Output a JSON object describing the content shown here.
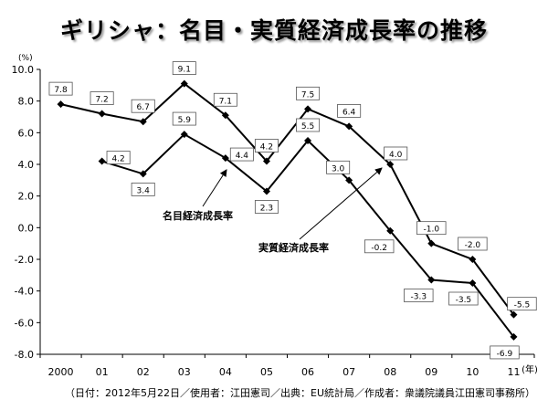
{
  "chart_data": {
    "type": "line",
    "title": "ギリシャ：名目・実質経済成長率の推移",
    "ylabel": "(%)",
    "xlabel": "(年)",
    "ylim": [
      -8.0,
      10.0
    ],
    "ytick_values": [
      10.0,
      8.0,
      6.0,
      4.0,
      2.0,
      0.0,
      -2.0,
      -4.0,
      -6.0,
      -8.0
    ],
    "ytick_labels": [
      "10.0",
      "8.0",
      "6.0",
      "4.0",
      "2.0",
      "0.0",
      "-2.0",
      "-4.0",
      "-6.0",
      "-8.0"
    ],
    "categories": [
      "2000",
      "01",
      "02",
      "03",
      "04",
      "05",
      "06",
      "07",
      "08",
      "09",
      "10",
      "11"
    ],
    "grid": false,
    "series": [
      {
        "name": "名目経済成長率",
        "values": [
          7.8,
          7.2,
          6.7,
          9.1,
          7.1,
          4.2,
          7.5,
          6.4,
          4.0,
          -1.0,
          -2.0,
          -5.5
        ],
        "labels": [
          "7.8",
          "7.2",
          "6.7",
          "9.1",
          "7.1",
          "4.2",
          "7.5",
          "6.4",
          "4.0",
          "-1.0",
          "-2.0",
          "-5.5"
        ]
      },
      {
        "name": "実質経済成長率",
        "values": [
          null,
          4.2,
          3.4,
          5.9,
          4.4,
          2.3,
          5.5,
          3.0,
          -0.2,
          -3.3,
          -3.5,
          -6.9
        ],
        "labels": [
          null,
          "4.2",
          "3.4",
          "5.9",
          "4.4",
          "2.3",
          "5.5",
          "3.0",
          "-0.2",
          "-3.3",
          "-3.5",
          "-6.9"
        ]
      }
    ],
    "annotations": [
      "名目経済成長率",
      "実質経済成長率"
    ],
    "line_color": "#000000"
  },
  "footnote": "（日付：2012年5月22日／使用者：江田憲司／出典：EU統計局／作成者：衆議院議員江田憲司事務所）"
}
